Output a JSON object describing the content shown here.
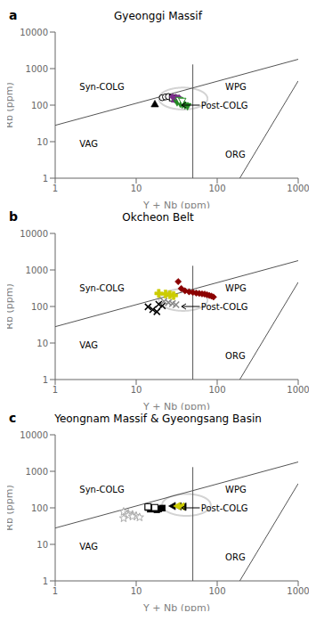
{
  "chart_data": [
    {
      "type": "scatter",
      "panel_label": "a",
      "title": "Gyeonggi Massif",
      "xlabel": "Y + Nb (ppm)",
      "ylabel": "Rb (ppm)",
      "log": true,
      "xlim": [
        1,
        1000
      ],
      "ylim": [
        1,
        10000
      ],
      "xticks": [
        1,
        10,
        100,
        1000
      ],
      "yticks": [
        1,
        10,
        100,
        1000,
        10000
      ],
      "annotations": [
        "Syn-COLG",
        "WPG",
        "Post-COLG",
        "VAG",
        "ORG"
      ],
      "circle": {
        "center_log": [
          1.58,
          2.18
        ],
        "radius_log": 0.3,
        "color": "lightgray"
      },
      "series": [
        {
          "type": "line",
          "color": "#555555",
          "x": [
            1,
            1000
          ],
          "values": [
            28,
            1800
          ]
        },
        {
          "type": "line",
          "color": "#555555",
          "x": [
            50,
            50
          ],
          "values": [
            1,
            1300
          ]
        },
        {
          "type": "line",
          "color": "#555555",
          "x": [
            190,
            1000
          ],
          "values": [
            1,
            460
          ]
        },
        {
          "type": "scatter",
          "marker": "triangle-up",
          "color": "black",
          "x": [
            17
          ],
          "values": [
            108
          ]
        },
        {
          "type": "scatter",
          "marker": "circle-open",
          "color": "black",
          "x": [
            21,
            23,
            25
          ],
          "values": [
            160,
            168,
            172
          ]
        },
        {
          "type": "scatter",
          "marker": "square-open",
          "color": "black",
          "x": [
            28,
            31
          ],
          "values": [
            158,
            152
          ]
        },
        {
          "type": "scatter",
          "marker": "triangle-up",
          "color": "#7B2D8B",
          "x": [
            30,
            33,
            35,
            38
          ],
          "values": [
            145,
            138,
            128,
            118
          ]
        },
        {
          "type": "scatter",
          "marker": "triangle-down",
          "color": "#228B22",
          "x": [
            32,
            35,
            37,
            40,
            43
          ],
          "values": [
            118,
            108,
            102,
            97,
            92
          ]
        },
        {
          "type": "scatter",
          "marker": "diamond",
          "color": "#7B2D8B",
          "x": [
            28,
            31,
            34
          ],
          "values": [
            170,
            165,
            158
          ]
        },
        {
          "type": "scatter",
          "marker": "triangle-down-open",
          "color": "#228B22",
          "x": [
            34,
            37
          ],
          "values": [
            135,
            128
          ]
        }
      ]
    },
    {
      "type": "scatter",
      "panel_label": "b",
      "title": "Okcheon Belt",
      "xlabel": "Y + Nb (ppm)",
      "ylabel": "Rb (ppm)",
      "log": true,
      "xlim": [
        1,
        1000
      ],
      "ylim": [
        1,
        10000
      ],
      "xticks": [
        1,
        10,
        100,
        1000
      ],
      "yticks": [
        1,
        10,
        100,
        1000,
        10000
      ],
      "annotations": [
        "Syn-COLG",
        "WPG",
        "Post-COLG",
        "VAG",
        "ORG"
      ],
      "circle": {
        "center_log": [
          1.58,
          2.18
        ],
        "radius_log": 0.3,
        "color": "lightgray"
      },
      "series": [
        {
          "type": "line",
          "color": "#555555",
          "x": [
            1,
            1000
          ],
          "values": [
            28,
            1800
          ]
        },
        {
          "type": "line",
          "color": "#555555",
          "x": [
            50,
            50
          ],
          "values": [
            1,
            1300
          ]
        },
        {
          "type": "line",
          "color": "#555555",
          "x": [
            190,
            1000
          ],
          "values": [
            1,
            460
          ]
        },
        {
          "type": "scatter",
          "marker": "plus-filled",
          "color": "#cccc00",
          "x": [
            19,
            23,
            26,
            29
          ],
          "values": [
            228,
            220,
            210,
            200
          ]
        },
        {
          "type": "scatter",
          "marker": "x",
          "color": "black",
          "x": [
            14,
            16,
            18,
            19,
            21
          ],
          "values": [
            98,
            82,
            72,
            115,
            104
          ]
        },
        {
          "type": "scatter",
          "marker": "diamond",
          "color": "#8B0000",
          "x": [
            33,
            36,
            40,
            45,
            50,
            55,
            60,
            65,
            70,
            75,
            80,
            85,
            90
          ],
          "values": [
            480,
            310,
            268,
            252,
            242,
            232,
            228,
            222,
            218,
            210,
            200,
            192,
            182
          ]
        },
        {
          "type": "scatter",
          "marker": "x",
          "color": "#888888",
          "x": [
            22,
            25,
            28,
            31
          ],
          "values": [
            138,
            128,
            120,
            112
          ]
        }
      ]
    },
    {
      "type": "scatter",
      "panel_label": "c",
      "title": "Yeongnam Massif & Gyeongsang Basin",
      "xlabel": "Y + Nb (ppm)",
      "ylabel": "Rb (ppm)",
      "log": true,
      "xlim": [
        1,
        1000
      ],
      "ylim": [
        1,
        10000
      ],
      "xticks": [
        1,
        10,
        100,
        1000
      ],
      "yticks": [
        1,
        10,
        100,
        1000,
        10000
      ],
      "annotations": [
        "Syn-COLG",
        "WPG",
        "Post-COLG",
        "VAG",
        "ORG"
      ],
      "circle": {
        "center_log": [
          1.62,
          2.08
        ],
        "radius_log": 0.3,
        "color": "lightgray"
      },
      "series": [
        {
          "type": "line",
          "color": "#555555",
          "x": [
            1,
            1000
          ],
          "values": [
            28,
            1800
          ]
        },
        {
          "type": "line",
          "color": "#555555",
          "x": [
            50,
            50
          ],
          "values": [
            1,
            1300
          ]
        },
        {
          "type": "line",
          "color": "#555555",
          "x": [
            190,
            1000
          ],
          "values": [
            1,
            460
          ]
        },
        {
          "type": "scatter",
          "marker": "star-open",
          "color": "#aaaaaa",
          "x": [
            7,
            8,
            9,
            10,
            11,
            8,
            9,
            7
          ],
          "values": [
            78,
            70,
            65,
            60,
            55,
            62,
            58,
            52
          ]
        },
        {
          "type": "scatter",
          "marker": "square",
          "color": "black",
          "x": [
            14,
            17,
            19,
            21,
            15,
            18
          ],
          "values": [
            102,
            97,
            93,
            98,
            92,
            88
          ]
        },
        {
          "type": "scatter",
          "marker": "square-open",
          "color": "black",
          "x": [
            14,
            17
          ],
          "values": [
            107,
            102
          ]
        },
        {
          "type": "scatter",
          "marker": "triangle-left",
          "color": "black",
          "x": [
            28,
            33,
            38
          ],
          "values": [
            112,
            110,
            108
          ]
        },
        {
          "type": "scatter",
          "marker": "triangle-left",
          "color": "#cccc00",
          "x": [
            32,
            36
          ],
          "values": [
            112,
            110
          ]
        }
      ]
    }
  ]
}
